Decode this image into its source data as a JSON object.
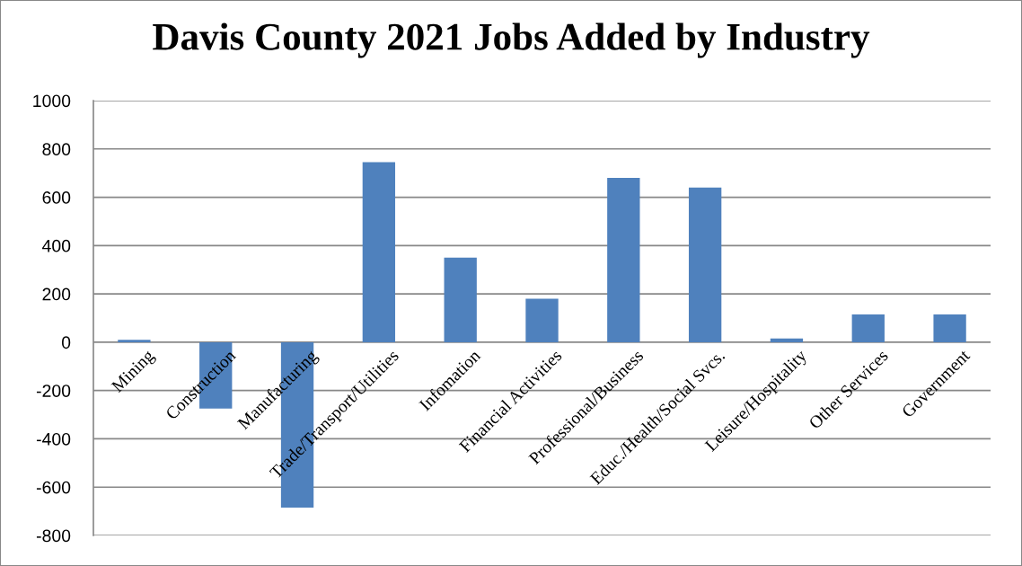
{
  "chart_data": {
    "type": "bar",
    "title": "Davis County 2021 Jobs Added by Industry",
    "categories": [
      "Mining",
      "Construction",
      "Manufacturing",
      "Trade/Transport/Utilities",
      "Infomation",
      "Financial Activities",
      "Professional/Business",
      "Educ./Health/Social Svcs.",
      "Leisure/Hospitality",
      "Other Services",
      "Government"
    ],
    "values": [
      10,
      -275,
      -685,
      745,
      350,
      180,
      680,
      640,
      15,
      115,
      115
    ],
    "color": "#4f81bd",
    "ylim": [
      -800,
      1000
    ],
    "yticks": [
      -800,
      -600,
      -400,
      -200,
      0,
      200,
      400,
      600,
      800,
      1000
    ],
    "grid": "y"
  }
}
